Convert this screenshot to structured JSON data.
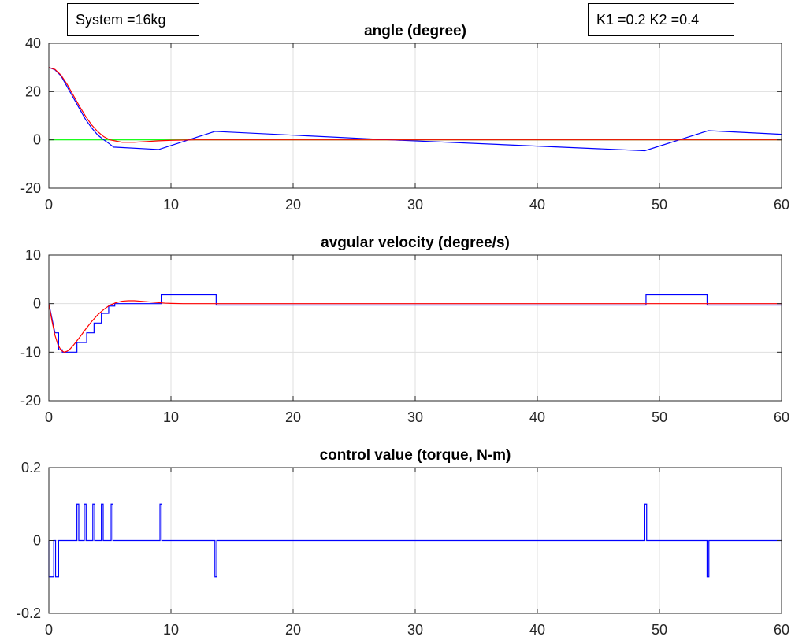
{
  "annotations": {
    "system": "System =16kg",
    "gains": "K1 =0.2 K2 =0.4"
  },
  "colors": {
    "background": "#ffffff",
    "axes": "#262626",
    "grid": "#dfdfdf",
    "blue": "#0000ff",
    "red": "#ff0000",
    "green": "#00ff00"
  },
  "chart_data": [
    {
      "type": "line",
      "title": "angle (degree)",
      "xlabel": "",
      "ylabel": "",
      "xlim": [
        0,
        60
      ],
      "ylim": [
        -20,
        40
      ],
      "xticks": [
        0,
        10,
        20,
        30,
        40,
        50,
        60
      ],
      "xtick_labels": [
        "0",
        "10",
        "20",
        "30",
        "40",
        "50",
        "60"
      ],
      "yticks": [
        -20,
        0,
        20,
        40
      ],
      "ytick_labels": [
        "-20",
        "0",
        "20",
        "40"
      ],
      "grid": true,
      "series": [
        {
          "color": "#00ff00",
          "x": [
            0,
            9,
            60
          ],
          "y": [
            0,
            0,
            0
          ]
        },
        {
          "color": "#0000ff",
          "x": [
            0,
            0.5,
            1,
            1.5,
            2,
            2.5,
            3,
            3.5,
            4,
            4.5,
            5,
            5.3,
            9,
            13.6,
            28,
            48.8,
            54,
            60
          ],
          "y": [
            30,
            29,
            26.5,
            22,
            17.5,
            13,
            8.5,
            5,
            2,
            0,
            -1.8,
            -3,
            -4,
            3.5,
            0,
            -4.5,
            3.8,
            2.3
          ]
        },
        {
          "color": "#ff0000",
          "x": [
            0,
            0.5,
            1,
            1.5,
            2,
            2.5,
            3,
            3.5,
            4,
            4.5,
            5,
            6,
            7,
            8,
            9,
            10,
            12,
            60
          ],
          "y": [
            30,
            29.2,
            26.8,
            23,
            18.5,
            14,
            9.8,
            6.2,
            3.4,
            1.3,
            0,
            -1,
            -1,
            -0.7,
            -0.4,
            -0.2,
            0,
            0
          ]
        }
      ]
    },
    {
      "type": "line",
      "title": "avgular velocity (degree/s)",
      "xlabel": "",
      "ylabel": "",
      "xlim": [
        0,
        60
      ],
      "ylim": [
        -20,
        10
      ],
      "xticks": [
        0,
        10,
        20,
        30,
        40,
        50,
        60
      ],
      "xtick_labels": [
        "0",
        "10",
        "20",
        "30",
        "40",
        "50",
        "60"
      ],
      "yticks": [
        -20,
        -10,
        0,
        10
      ],
      "ytick_labels": [
        "-20",
        "-10",
        "0",
        "10"
      ],
      "grid": true,
      "series": [
        {
          "color": "#0000ff",
          "x": [
            0,
            0.5,
            0.5,
            0.8,
            0.8,
            1.1,
            1.1,
            2.3,
            2.3,
            3.1,
            3.1,
            3.7,
            3.7,
            4.3,
            4.3,
            4.9,
            4.9,
            5.4,
            5.4,
            9.2,
            9.2,
            13.7,
            13.7,
            48.9,
            48.9,
            53.9,
            53.9,
            60
          ],
          "y": [
            0,
            -6,
            -6,
            -6,
            -9.5,
            -9.5,
            -10,
            -10,
            -8,
            -8,
            -6,
            -6,
            -4,
            -4,
            -2,
            -2,
            -0.5,
            -0.5,
            0,
            0,
            1.8,
            1.8,
            -0.3,
            -0.3,
            1.8,
            1.8,
            -0.3,
            -0.3
          ]
        },
        {
          "color": "#ff0000",
          "x": [
            0,
            0.25,
            0.5,
            0.75,
            1,
            1.25,
            1.5,
            1.75,
            2,
            2.5,
            3,
            3.5,
            4,
            4.5,
            5,
            5.5,
            6,
            6.5,
            7,
            7.5,
            8,
            8.5,
            9,
            9.5,
            10,
            11,
            12,
            13,
            14,
            15,
            60
          ],
          "y": [
            0,
            -3.5,
            -6.5,
            -8.5,
            -9.6,
            -10,
            -9.8,
            -9.3,
            -8.6,
            -7,
            -5.3,
            -3.7,
            -2.3,
            -1.2,
            -0.3,
            0.2,
            0.5,
            0.6,
            0.6,
            0.5,
            0.4,
            0.3,
            0.2,
            0.1,
            0.05,
            0,
            0,
            0,
            0,
            0,
            0
          ]
        }
      ]
    },
    {
      "type": "line",
      "title": "control value (torque, N-m)",
      "xlabel": "",
      "ylabel": "",
      "xlim": [
        0,
        60
      ],
      "ylim": [
        -0.2,
        0.2
      ],
      "xticks": [
        0,
        10,
        20,
        30,
        40,
        50,
        60
      ],
      "xtick_labels": [
        "0",
        "10",
        "20",
        "30",
        "40",
        "50",
        "60"
      ],
      "yticks": [
        -0.2,
        0,
        0.2
      ],
      "ytick_labels": [
        "-0.2",
        "0",
        "0.2"
      ],
      "grid": true,
      "series": [
        {
          "color": "#0000ff",
          "x": [
            0,
            0,
            0.4,
            0.4,
            0.55,
            0.55,
            0.8,
            0.8,
            2.3,
            2.3,
            2.45,
            2.45,
            2.9,
            2.9,
            3.05,
            3.05,
            3.6,
            3.6,
            3.75,
            3.75,
            4.3,
            4.3,
            4.45,
            4.45,
            5.1,
            5.1,
            5.25,
            5.25,
            9.1,
            9.1,
            9.25,
            9.25,
            13.6,
            13.6,
            13.75,
            13.75,
            48.8,
            48.8,
            48.95,
            48.95,
            53.9,
            53.9,
            54.05,
            54.05,
            60
          ],
          "y": [
            0,
            -0.1,
            -0.1,
            0,
            0,
            -0.1,
            -0.1,
            0,
            0,
            0.1,
            0.1,
            0,
            0,
            0.1,
            0.1,
            0,
            0,
            0.1,
            0.1,
            0,
            0,
            0.1,
            0.1,
            0,
            0,
            0.1,
            0.1,
            0,
            0,
            0.1,
            0.1,
            0,
            0,
            -0.1,
            -0.1,
            0,
            0,
            0.1,
            0.1,
            0,
            0,
            -0.1,
            -0.1,
            0,
            0
          ]
        }
      ]
    }
  ]
}
